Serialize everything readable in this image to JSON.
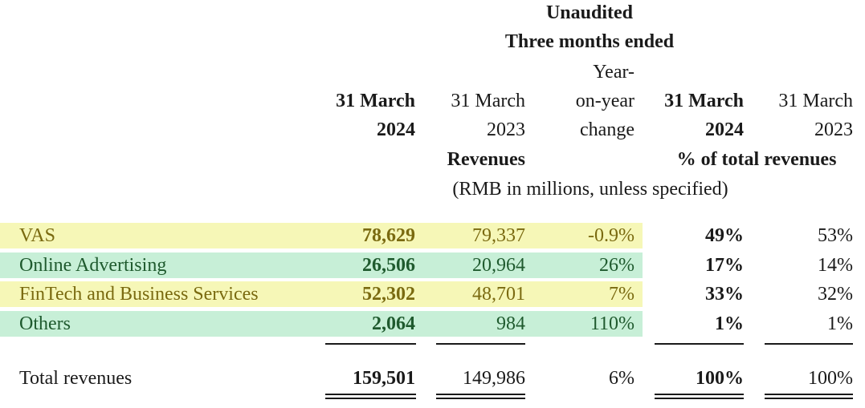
{
  "header": {
    "unaudited": "Unaudited",
    "three_months": "Three months ended",
    "cols": [
      {
        "line1": "31 March",
        "line2": "2024"
      },
      {
        "line1": "31 March",
        "line2": "2023"
      },
      {
        "line1": "Year-",
        "line2": "on-year",
        "line3": "change"
      },
      {
        "line1": "31 March",
        "line2": "2024"
      },
      {
        "line1": "31 March",
        "line2": "2023"
      }
    ],
    "revenues_label": "Revenues",
    "pct_label": "% of total revenues",
    "units": "(RMB in millions, unless specified)"
  },
  "rows": [
    {
      "label": "VAS",
      "v2024": "78,629",
      "v2023": "79,337",
      "yoy": "-0.9%",
      "p2024": "49%",
      "p2023": "53%"
    },
    {
      "label": "Online Advertising",
      "v2024": "26,506",
      "v2023": "20,964",
      "yoy": "26%",
      "p2024": "17%",
      "p2023": "14%"
    },
    {
      "label": "FinTech and Business Services",
      "v2024": "52,302",
      "v2023": "48,701",
      "yoy": "7%",
      "p2024": "33%",
      "p2023": "32%"
    },
    {
      "label": "Others",
      "v2024": "2,064",
      "v2023": "984",
      "yoy": "110%",
      "p2024": "1%",
      "p2023": "1%"
    }
  ],
  "total": {
    "label": "Total revenues",
    "v2024": "159,501",
    "v2023": "149,986",
    "yoy": "6%",
    "p2024": "100%",
    "p2023": "100%"
  },
  "colors": {
    "yellow_band": "#f6f7b7",
    "green_band": "#c7efd7",
    "olive_text": "#7a6a10",
    "green_text": "#1f5a2e"
  }
}
